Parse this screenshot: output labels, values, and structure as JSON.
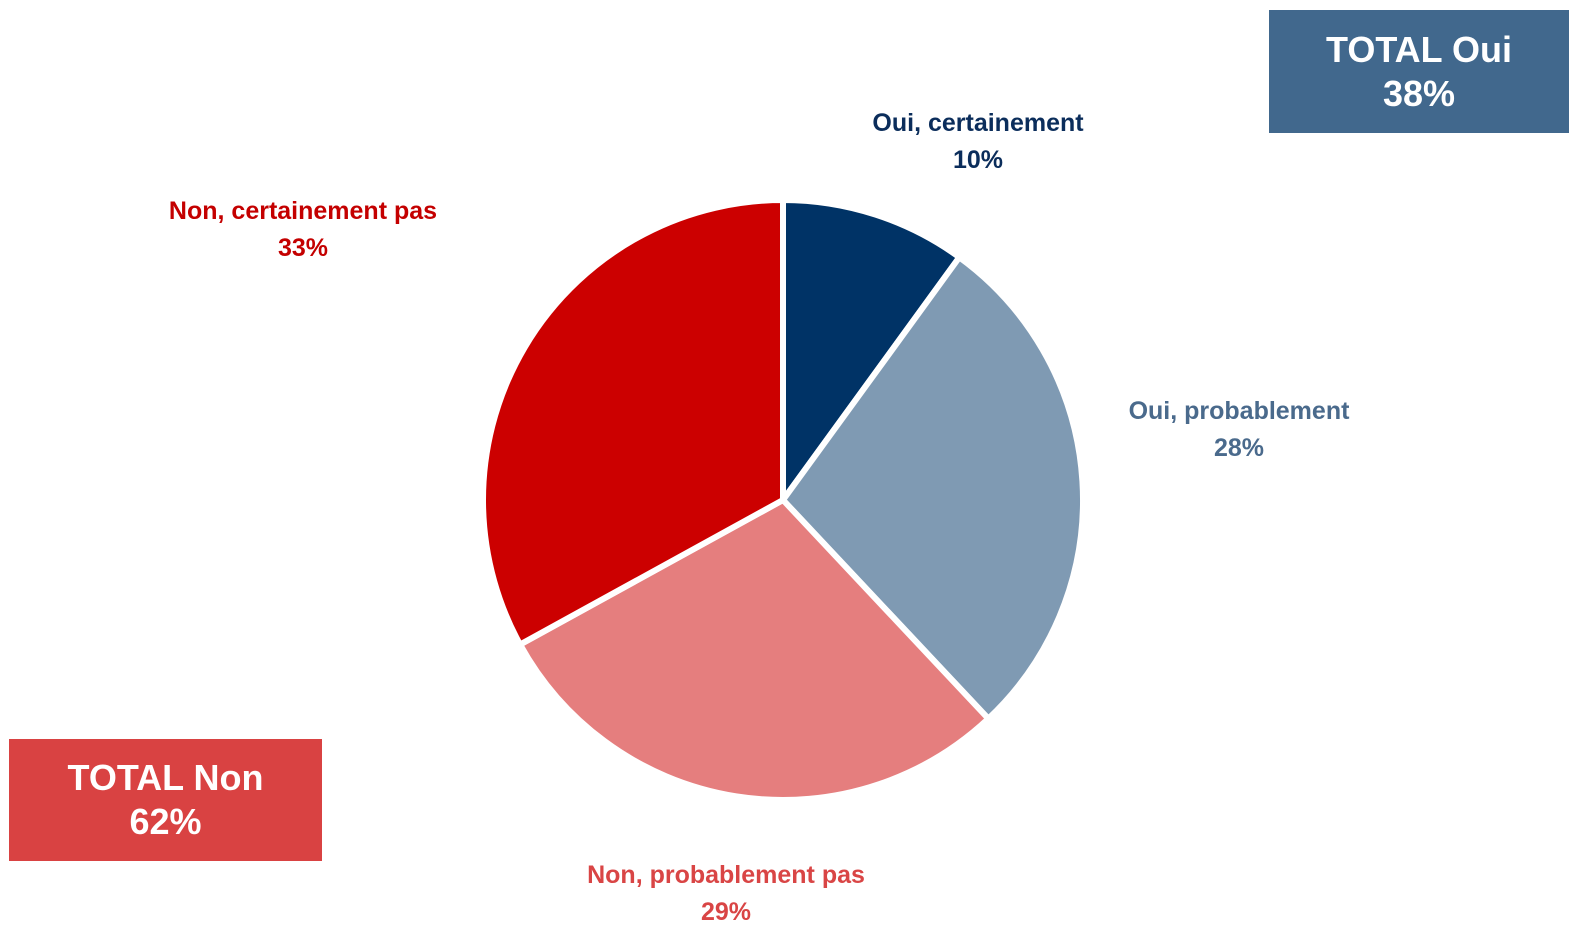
{
  "chart_data": {
    "type": "pie",
    "slices": [
      {
        "label": "Oui, certainement",
        "value": 10,
        "value_label": "10%",
        "color": "#003366",
        "label_color": "#0b2d5b"
      },
      {
        "label": "Oui, probablement",
        "value": 28,
        "value_label": "28%",
        "color": "#7f9ab3",
        "label_color": "#4a6a8c"
      },
      {
        "label": "Non, probablement pas",
        "value": 29,
        "value_label": "29%",
        "color": "#e57e7e",
        "label_color": "#d94545"
      },
      {
        "label": "Non, certainement pas",
        "value": 33,
        "value_label": "33%",
        "color": "#cc0000",
        "label_color": "#c40000"
      }
    ],
    "start_angle": "12 o'clock",
    "direction": "clockwise"
  },
  "totals": {
    "oui": {
      "label": "TOTAL Oui",
      "value": "38%",
      "color": "#41688d"
    },
    "non": {
      "label": "TOTAL Non",
      "value": "62%",
      "color": "#d94242"
    }
  }
}
